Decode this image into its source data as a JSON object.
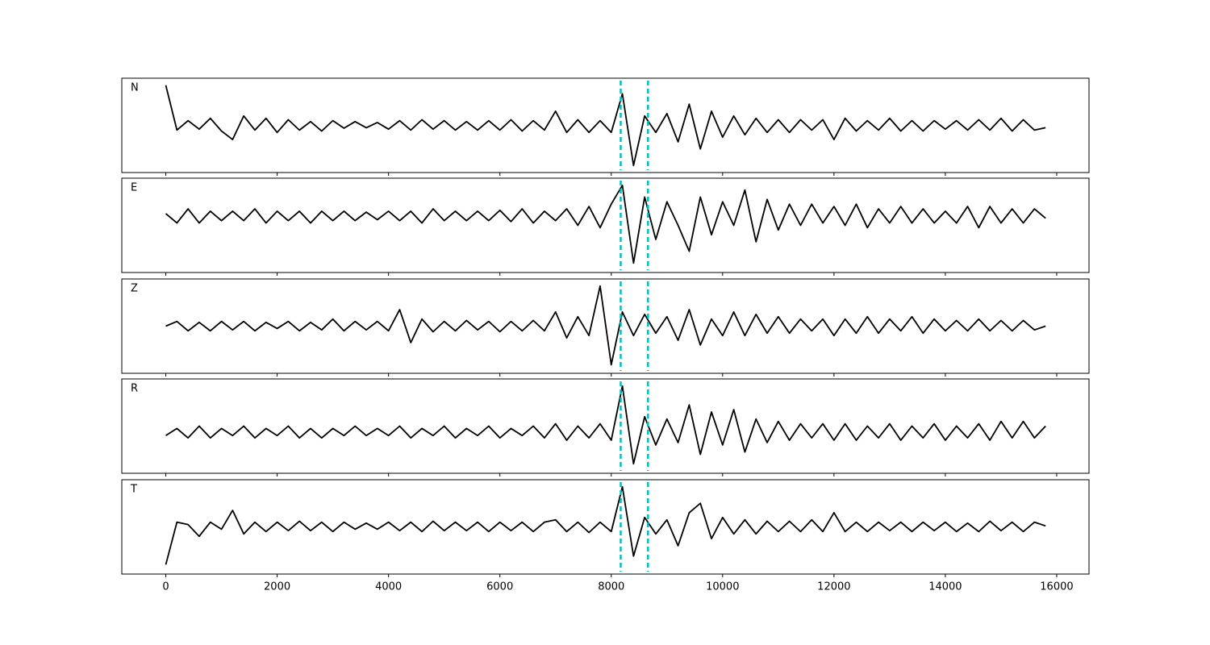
{
  "chart_data": [
    {
      "type": "line",
      "title": "N",
      "color": "#000000",
      "vline_color": "#00bfbf",
      "vlines": [
        8170,
        8660
      ],
      "xlim": [
        -790,
        16580
      ],
      "ylim": [
        -1,
        1
      ],
      "xticks": [
        0,
        2000,
        4000,
        6000,
        8000,
        10000,
        12000,
        14000,
        16000
      ],
      "x": [
        0,
        200,
        400,
        600,
        800,
        1000,
        1200,
        1400,
        1600,
        1800,
        2000,
        2200,
        2400,
        2600,
        2800,
        3000,
        3200,
        3400,
        3600,
        3800,
        4000,
        4200,
        4400,
        4600,
        4800,
        5000,
        5200,
        5400,
        5600,
        5800,
        6000,
        6200,
        6400,
        6600,
        6800,
        7000,
        7200,
        7400,
        7600,
        7800,
        8000,
        8200,
        8400,
        8600,
        8800,
        9000,
        9200,
        9400,
        9600,
        9800,
        10000,
        10200,
        10400,
        10600,
        10800,
        11000,
        11200,
        11400,
        11600,
        11800,
        12000,
        12200,
        12400,
        12600,
        12800,
        13000,
        13200,
        13400,
        13600,
        13800,
        14000,
        14200,
        14400,
        14600,
        14800,
        15000,
        15200,
        15400,
        15600,
        15800
      ],
      "values": [
        0.85,
        -0.1,
        0.1,
        -0.08,
        0.15,
        -0.12,
        -0.3,
        0.2,
        -0.1,
        0.15,
        -0.15,
        0.12,
        -0.1,
        0.08,
        -0.12,
        0.1,
        -0.06,
        0.08,
        -0.05,
        0.06,
        -0.08,
        0.1,
        -0.1,
        0.12,
        -0.08,
        0.1,
        -0.1,
        0.08,
        -0.1,
        0.1,
        -0.1,
        0.12,
        -0.12,
        0.1,
        -0.1,
        0.3,
        -0.15,
        0.12,
        -0.15,
        0.1,
        -0.15,
        0.67,
        -0.85,
        0.2,
        -0.15,
        0.25,
        -0.35,
        0.45,
        -0.5,
        0.3,
        -0.25,
        0.2,
        -0.2,
        0.15,
        -0.15,
        0.12,
        -0.15,
        0.12,
        -0.1,
        0.12,
        -0.3,
        0.15,
        -0.12,
        0.1,
        -0.1,
        0.15,
        -0.12,
        0.1,
        -0.12,
        0.1,
        -0.08,
        0.1,
        -0.1,
        0.12,
        -0.1,
        0.15,
        -0.12,
        0.12,
        -0.1,
        -0.05
      ]
    },
    {
      "type": "line",
      "title": "E",
      "color": "#000000",
      "vline_color": "#00bfbf",
      "vlines": [
        8170,
        8660
      ],
      "xlim": [
        -790,
        16580
      ],
      "ylim": [
        -1,
        1
      ],
      "xticks": [
        0,
        2000,
        4000,
        6000,
        8000,
        10000,
        12000,
        14000,
        16000
      ],
      "x": [
        0,
        200,
        400,
        600,
        800,
        1000,
        1200,
        1400,
        1600,
        1800,
        2000,
        2200,
        2400,
        2600,
        2800,
        3000,
        3200,
        3400,
        3600,
        3800,
        4000,
        4200,
        4400,
        4600,
        4800,
        5000,
        5200,
        5400,
        5600,
        5800,
        6000,
        6200,
        6400,
        6600,
        6800,
        7000,
        7200,
        7400,
        7600,
        7800,
        8000,
        8200,
        8400,
        8600,
        8800,
        9000,
        9200,
        9400,
        9600,
        9800,
        10000,
        10200,
        10400,
        10600,
        10800,
        11000,
        11200,
        11400,
        11600,
        11800,
        12000,
        12200,
        12400,
        12600,
        12800,
        13000,
        13200,
        13400,
        13600,
        13800,
        14000,
        14200,
        14400,
        14600,
        14800,
        15000,
        15200,
        15400,
        15600,
        15800
      ],
      "values": [
        0.25,
        0.05,
        0.35,
        0.05,
        0.3,
        0.1,
        0.3,
        0.1,
        0.35,
        0.05,
        0.3,
        0.1,
        0.3,
        0.05,
        0.3,
        0.1,
        0.3,
        0.1,
        0.28,
        0.12,
        0.3,
        0.1,
        0.3,
        0.05,
        0.35,
        0.1,
        0.3,
        0.1,
        0.3,
        0.1,
        0.32,
        0.08,
        0.35,
        0.05,
        0.3,
        0.1,
        0.35,
        0.0,
        0.4,
        -0.05,
        0.45,
        0.85,
        -0.8,
        0.6,
        -0.3,
        0.5,
        0.0,
        -0.55,
        0.6,
        -0.2,
        0.5,
        0.0,
        0.75,
        -0.35,
        0.55,
        -0.1,
        0.45,
        0.0,
        0.45,
        0.05,
        0.4,
        0.0,
        0.45,
        -0.05,
        0.35,
        0.05,
        0.4,
        0.05,
        0.35,
        0.05,
        0.3,
        0.05,
        0.4,
        -0.05,
        0.4,
        0.05,
        0.35,
        0.05,
        0.35,
        0.15
      ]
    },
    {
      "type": "line",
      "title": "Z",
      "color": "#000000",
      "vline_color": "#00bfbf",
      "vlines": [
        8170,
        8660
      ],
      "xlim": [
        -790,
        16580
      ],
      "ylim": [
        -1,
        1
      ],
      "xticks": [
        0,
        2000,
        4000,
        6000,
        8000,
        10000,
        12000,
        14000,
        16000
      ],
      "x": [
        0,
        200,
        400,
        600,
        800,
        1000,
        1200,
        1400,
        1600,
        1800,
        2000,
        2200,
        2400,
        2600,
        2800,
        3000,
        3200,
        3400,
        3600,
        3800,
        4000,
        4200,
        4400,
        4600,
        4800,
        5000,
        5200,
        5400,
        5600,
        5800,
        6000,
        6200,
        6400,
        6600,
        6800,
        7000,
        7200,
        7400,
        7600,
        7800,
        8000,
        8200,
        8400,
        8600,
        8800,
        9000,
        9200,
        9400,
        9600,
        9800,
        10000,
        10200,
        10400,
        10600,
        10800,
        11000,
        11200,
        11400,
        11600,
        11800,
        12000,
        12200,
        12400,
        12600,
        12800,
        13000,
        13200,
        13400,
        13600,
        13800,
        14000,
        14200,
        14400,
        14600,
        14800,
        15000,
        15200,
        15400,
        15600,
        15800
      ],
      "values": [
        0.0,
        0.1,
        -0.1,
        0.08,
        -0.1,
        0.1,
        -0.08,
        0.1,
        -0.1,
        0.08,
        -0.05,
        0.1,
        -0.1,
        0.08,
        -0.08,
        0.15,
        -0.1,
        0.1,
        -0.08,
        0.1,
        -0.1,
        0.35,
        -0.35,
        0.15,
        -0.12,
        0.1,
        -0.1,
        0.12,
        -0.08,
        0.1,
        -0.12,
        0.1,
        -0.1,
        0.12,
        -0.1,
        0.3,
        -0.25,
        0.2,
        -0.2,
        0.85,
        -0.82,
        0.3,
        -0.2,
        0.25,
        -0.15,
        0.2,
        -0.3,
        0.35,
        -0.4,
        0.15,
        -0.2,
        0.3,
        -0.2,
        0.25,
        -0.15,
        0.2,
        -0.15,
        0.15,
        -0.1,
        0.15,
        -0.2,
        0.15,
        -0.15,
        0.2,
        -0.15,
        0.15,
        -0.1,
        0.2,
        -0.15,
        0.15,
        -0.1,
        0.12,
        -0.1,
        0.15,
        -0.1,
        0.12,
        -0.1,
        0.12,
        -0.08,
        0.0
      ]
    },
    {
      "type": "line",
      "title": "R",
      "color": "#000000",
      "vline_color": "#00bfbf",
      "vlines": [
        8170,
        8660
      ],
      "xlim": [
        -790,
        16580
      ],
      "ylim": [
        -1,
        1
      ],
      "xticks": [
        0,
        2000,
        4000,
        6000,
        8000,
        10000,
        12000,
        14000,
        16000
      ],
      "x": [
        0,
        200,
        400,
        600,
        800,
        1000,
        1200,
        1400,
        1600,
        1800,
        2000,
        2200,
        2400,
        2600,
        2800,
        3000,
        3200,
        3400,
        3600,
        3800,
        4000,
        4200,
        4400,
        4600,
        4800,
        5000,
        5200,
        5400,
        5600,
        5800,
        6000,
        6200,
        6400,
        6600,
        6800,
        7000,
        7200,
        7400,
        7600,
        7800,
        8000,
        8200,
        8400,
        8600,
        8800,
        9000,
        9200,
        9400,
        9600,
        9800,
        10000,
        10200,
        10400,
        10600,
        10800,
        11000,
        11200,
        11400,
        11600,
        11800,
        12000,
        12200,
        12400,
        12600,
        12800,
        13000,
        13200,
        13400,
        13600,
        13800,
        14000,
        14200,
        14400,
        14600,
        14800,
        15000,
        15200,
        15400,
        15600,
        15800
      ],
      "values": [
        -0.2,
        -0.05,
        -0.25,
        0.0,
        -0.25,
        -0.05,
        -0.2,
        0.0,
        -0.25,
        -0.05,
        -0.2,
        0.0,
        -0.25,
        -0.05,
        -0.25,
        -0.05,
        -0.2,
        0.0,
        -0.2,
        -0.05,
        -0.2,
        0.0,
        -0.25,
        -0.05,
        -0.2,
        0.0,
        -0.25,
        -0.05,
        -0.2,
        0.0,
        -0.25,
        -0.05,
        -0.2,
        0.0,
        -0.25,
        0.05,
        -0.3,
        0.0,
        -0.25,
        0.05,
        -0.3,
        0.85,
        -0.8,
        0.2,
        -0.4,
        0.15,
        -0.35,
        0.45,
        -0.6,
        0.3,
        -0.4,
        0.35,
        -0.55,
        0.15,
        -0.35,
        0.1,
        -0.3,
        0.05,
        -0.25,
        0.05,
        -0.3,
        0.05,
        -0.3,
        0.0,
        -0.25,
        0.05,
        -0.3,
        0.0,
        -0.25,
        0.05,
        -0.3,
        0.0,
        -0.25,
        0.05,
        -0.3,
        0.1,
        -0.25,
        0.1,
        -0.25,
        0.0
      ]
    },
    {
      "type": "line",
      "title": "T",
      "color": "#000000",
      "vline_color": "#00bfbf",
      "vlines": [
        8170,
        8660
      ],
      "xlim": [
        -790,
        16580
      ],
      "ylim": [
        -1,
        1
      ],
      "xticks": [
        0,
        2000,
        4000,
        6000,
        8000,
        10000,
        12000,
        14000,
        16000
      ],
      "x": [
        0,
        200,
        400,
        600,
        800,
        1000,
        1200,
        1400,
        1600,
        1800,
        2000,
        2200,
        2400,
        2600,
        2800,
        3000,
        3200,
        3400,
        3600,
        3800,
        4000,
        4200,
        4400,
        4600,
        4800,
        5000,
        5200,
        5400,
        5600,
        5800,
        6000,
        6200,
        6400,
        6600,
        6800,
        7000,
        7200,
        7400,
        7600,
        7800,
        8000,
        8200,
        8400,
        8600,
        8800,
        9000,
        9200,
        9400,
        9600,
        9800,
        10000,
        10200,
        10400,
        10600,
        10800,
        11000,
        11200,
        11400,
        11600,
        11800,
        12000,
        12200,
        12400,
        12600,
        12800,
        13000,
        13200,
        13400,
        13600,
        13800,
        14000,
        14200,
        14400,
        14600,
        14800,
        15000,
        15200,
        15400,
        15600,
        15800
      ],
      "values": [
        -0.8,
        0.1,
        0.05,
        -0.2,
        0.1,
        -0.05,
        0.35,
        -0.15,
        0.1,
        -0.1,
        0.1,
        -0.08,
        0.12,
        -0.08,
        0.1,
        -0.1,
        0.1,
        -0.05,
        0.08,
        -0.05,
        0.1,
        -0.08,
        0.1,
        -0.1,
        0.12,
        -0.08,
        0.1,
        -0.08,
        0.1,
        -0.1,
        0.1,
        -0.08,
        0.1,
        -0.1,
        0.1,
        0.15,
        -0.1,
        0.1,
        -0.12,
        0.1,
        -0.1,
        0.85,
        -0.62,
        0.2,
        -0.15,
        0.15,
        -0.4,
        0.3,
        0.5,
        -0.25,
        0.2,
        -0.15,
        0.15,
        -0.15,
        0.12,
        -0.1,
        0.12,
        -0.1,
        0.15,
        -0.1,
        0.3,
        -0.1,
        0.1,
        -0.1,
        0.1,
        -0.08,
        0.1,
        -0.1,
        0.1,
        -0.08,
        0.1,
        -0.1,
        0.08,
        -0.1,
        0.12,
        -0.08,
        0.1,
        -0.1,
        0.1,
        0.02
      ]
    }
  ]
}
